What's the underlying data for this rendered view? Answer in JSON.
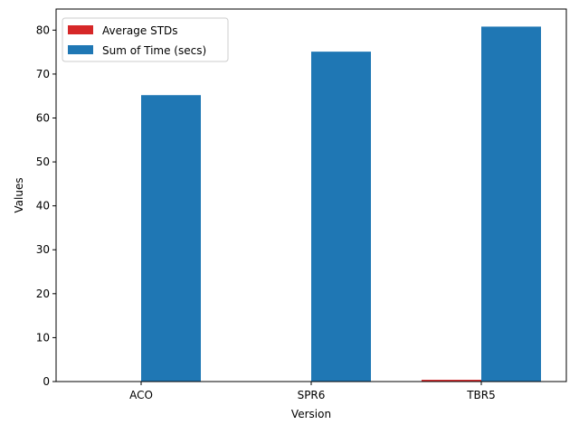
{
  "chart_data": {
    "type": "bar",
    "categories": [
      "ACO",
      "SPR6",
      "TBR5"
    ],
    "series": [
      {
        "name": "Average STDs",
        "values": [
          0.08,
          0.1,
          0.4
        ],
        "color": "#d62728"
      },
      {
        "name": "Sum of Time (secs)",
        "values": [
          65.2,
          75.1,
          80.8
        ],
        "color": "#1f77b4"
      }
    ],
    "xlabel": "Version",
    "ylabel": "Values",
    "ylim": [
      0,
      84.8
    ],
    "yticks": [
      0,
      10,
      20,
      30,
      40,
      50,
      60,
      70,
      80
    ],
    "legend_position": "top-left",
    "grid": false
  }
}
